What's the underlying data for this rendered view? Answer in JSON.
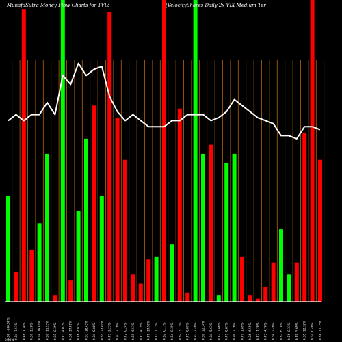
{
  "chart_data": {
    "type": "bar",
    "title_left": "MunafaSutra  Money Flow  Charts for TVIZ",
    "title_right": "(VelocityShares Daily 2x VIX   Medium Ter",
    "footer_label": "0.00%",
    "colors": {
      "background": "#000000",
      "up": "#00ff00",
      "down": "#ff0000",
      "line": "#ffffff",
      "grid": "#b8650a",
      "baseline": "#ffffff"
    },
    "grid": true,
    "ylim": [
      0,
      100
    ],
    "line_ylim": [
      0,
      100
    ],
    "categories": [
      "0.00 (-100.00%)",
      "0.34 -7.51%",
      "0.46 -7.38%",
      "0.67 -1.28%",
      "0.59 -19.84%",
      "0.89 -11.53%",
      "0.81 -8.39%",
      "0.73 -4.07%",
      "0.68 -17.01%",
      "0.76 -4.92%",
      "0.63 -18.45%",
      "0.84 -0.88%",
      "0.85 -27.49%",
      "0.73 -2.23%",
      "0.92 -3.70%",
      "0.72 -0.24%",
      "0.69 -6.51%",
      "0.73 -4.79%",
      "0.76 -17.98%",
      "0.71 -1.12%",
      "0.82 -0.17%",
      "0.64 -8.35%",
      "0.87 -3.13%",
      "0.75 -0.09%",
      "0.87 -3.40%",
      "0.69 -12.34%",
      "0.84 -5.63%",
      "0.77 -1.86%",
      "0.71 -0.87%",
      "0.80 -2.70%",
      "0.79 -1.89%",
      "0.86 -6.55%",
      "0.72 -1.20%",
      "0.73 -4.78%",
      "0.69 -2.40%",
      "0.57 -6.78%",
      "0.56 -8.31%",
      "0.70 -5.69%",
      "0.65 -12.32%",
      "0.64 -0.40%",
      "0.58 -11.75%"
    ],
    "series": [
      {
        "values": [
          35,
          10,
          97,
          17,
          26,
          49,
          2,
          100,
          7,
          30,
          54,
          65,
          35,
          96,
          61,
          47,
          9,
          6,
          14,
          15,
          100,
          19,
          64,
          3,
          100,
          49,
          52,
          2,
          46,
          49,
          15,
          2,
          1,
          5,
          13,
          24,
          9,
          13,
          56,
          100,
          47
        ],
        "directions": [
          "up",
          "down",
          "down",
          "down",
          "up",
          "up",
          "down",
          "up",
          "down",
          "up",
          "up",
          "down",
          "up",
          "down",
          "down",
          "down",
          "down",
          "down",
          "down",
          "up",
          "down",
          "up",
          "down",
          "down",
          "up",
          "up",
          "down",
          "up",
          "up",
          "up",
          "down",
          "down",
          "down",
          "down",
          "down",
          "up",
          "up",
          "down",
          "down",
          "down",
          "down"
        ]
      },
      {
        "type": "line",
        "values": [
          60,
          62,
          60,
          62,
          62,
          66,
          62,
          75,
          72,
          79,
          75,
          77,
          78,
          68,
          63,
          60,
          62,
          60,
          58,
          58,
          58,
          60,
          60,
          62,
          62,
          62,
          60,
          61,
          63,
          67,
          65,
          63,
          61,
          60,
          59,
          55,
          55,
          54,
          58,
          58,
          57
        ]
      }
    ]
  }
}
